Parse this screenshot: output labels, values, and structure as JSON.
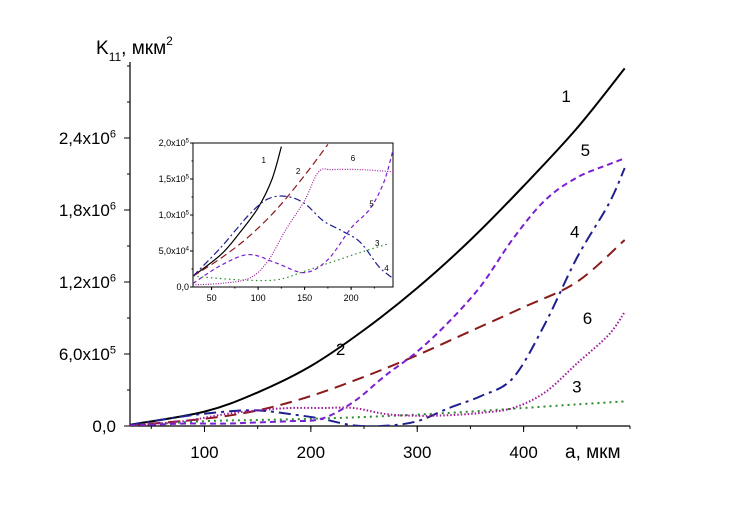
{
  "chart_data": [
    {
      "type": "line",
      "ylabel": "K",
      "ylabel_sub": "11",
      "ylabel_unit": ", мкм",
      "ylabel_sup": "2",
      "xlabel": "a, мкм",
      "xlim": [
        30,
        500
      ],
      "ylim": [
        0,
        3000000
      ],
      "x_ticks": [
        100,
        200,
        300,
        400
      ],
      "x_tick_labels": [
        "100",
        "200",
        "300",
        "400"
      ],
      "y_ticks": [
        0,
        600000,
        1200000,
        1800000,
        2400000
      ],
      "y_tick_labels": [
        {
          "base": "0,0",
          "exp": ""
        },
        {
          "base": "6,0x10",
          "exp": "5"
        },
        {
          "base": "1,2x10",
          "exp": "6"
        },
        {
          "base": "1,8x10",
          "exp": "6"
        },
        {
          "base": "2,4x10",
          "exp": "6"
        }
      ],
      "grid": false,
      "series": [
        {
          "name": "1",
          "color": "#000000",
          "dash": "solid",
          "x": [
            30,
            100,
            150,
            200,
            250,
            300,
            350,
            400,
            450,
            495
          ],
          "y": [
            10000,
            120000,
            280000,
            500000,
            800000,
            1150000,
            1550000,
            2000000,
            2480000,
            2980000
          ],
          "label_at": [
            440,
            2700000
          ]
        },
        {
          "name": "2",
          "color": "#8b1a1a",
          "dash": "long",
          "x": [
            30,
            100,
            150,
            200,
            250,
            300,
            350,
            400,
            450,
            495
          ],
          "y": [
            5000,
            60000,
            130000,
            250000,
            410000,
            590000,
            790000,
            990000,
            1200000,
            1550000
          ],
          "label_at": [
            228,
            590000
          ]
        },
        {
          "name": "3",
          "color": "#2e8b2e",
          "dash": "dot",
          "x": [
            30,
            100,
            150,
            200,
            250,
            300,
            350,
            400,
            450,
            495
          ],
          "y": [
            3000,
            40000,
            50000,
            60000,
            75000,
            95000,
            120000,
            150000,
            180000,
            205000
          ],
          "label_at": [
            450,
            280000
          ]
        },
        {
          "name": "4",
          "color": "#1f1f8f",
          "dash": "dashdot",
          "x": [
            30,
            80,
            120,
            150,
            180,
            210,
            240,
            270,
            300,
            330,
            360,
            390,
            420,
            450,
            480,
            495
          ],
          "y": [
            8000,
            80000,
            120000,
            130000,
            100000,
            60000,
            5000,
            2000,
            40000,
            150000,
            250000,
            400000,
            850000,
            1400000,
            1850000,
            2150000
          ],
          "label_at": [
            448,
            1570000
          ]
        },
        {
          "name": "5",
          "color": "#7a1fd1",
          "dash": "short",
          "x": [
            30,
            80,
            120,
            150,
            180,
            210,
            240,
            270,
            300,
            330,
            360,
            390,
            420,
            450,
            480,
            495
          ],
          "y": [
            3000,
            20000,
            20000,
            30000,
            40000,
            60000,
            200000,
            420000,
            620000,
            870000,
            1170000,
            1560000,
            1880000,
            2070000,
            2180000,
            2230000
          ],
          "label_at": [
            458,
            2250000
          ]
        },
        {
          "name": "6",
          "color": "#a0189a",
          "dash": "fine",
          "x": [
            30,
            80,
            120,
            150,
            180,
            210,
            240,
            270,
            300,
            330,
            360,
            390,
            420,
            450,
            480,
            495
          ],
          "y": [
            3000,
            40000,
            100000,
            130000,
            150000,
            150000,
            150000,
            100000,
            85000,
            90000,
            110000,
            150000,
            280000,
            520000,
            760000,
            950000
          ],
          "label_at": [
            460,
            850000
          ]
        }
      ]
    },
    {
      "type": "line",
      "ylabel": "",
      "xlabel": "",
      "xlim": [
        30,
        245
      ],
      "ylim": [
        0,
        200000
      ],
      "x_ticks": [
        50,
        100,
        150,
        200
      ],
      "x_tick_labels": [
        "50",
        "100",
        "150",
        "200"
      ],
      "y_ticks": [
        0,
        50000,
        100000,
        150000,
        200000
      ],
      "y_tick_labels": [
        {
          "base": "0,0",
          "exp": ""
        },
        {
          "base": "5,0x10",
          "exp": "4"
        },
        {
          "base": "1,0x10",
          "exp": "5"
        },
        {
          "base": "1,5x10",
          "exp": "5"
        },
        {
          "base": "2,0x10",
          "exp": "5"
        }
      ],
      "grid": false,
      "series": [
        {
          "name": "1",
          "color": "#000000",
          "dash": "solid",
          "x": [
            30,
            60,
            80,
            100,
            115,
            125
          ],
          "y": [
            15000,
            45000,
            75000,
            110000,
            150000,
            195000
          ],
          "label_at": [
            106,
            172000
          ]
        },
        {
          "name": "2",
          "color": "#8b1a1a",
          "dash": "long",
          "x": [
            30,
            60,
            90,
            120,
            150,
            175
          ],
          "y": [
            15000,
            40000,
            70000,
            108000,
            155000,
            198000
          ],
          "label_at": [
            143,
            157000
          ]
        },
        {
          "name": "3",
          "color": "#2e8b2e",
          "dash": "dot",
          "x": [
            30,
            80,
            120,
            150,
            180,
            210,
            240
          ],
          "y": [
            15000,
            10000,
            10000,
            22000,
            35000,
            48000,
            60000
          ],
          "label_at": [
            228,
            57000
          ]
        },
        {
          "name": "4",
          "color": "#1f1f8f",
          "dash": "dashdot",
          "x": [
            30,
            60,
            90,
            110,
            130,
            150,
            170,
            190,
            210,
            230,
            245
          ],
          "y": [
            15000,
            55000,
            100000,
            122000,
            126000,
            116000,
            92000,
            78000,
            62000,
            28000,
            12000
          ],
          "label_at": [
            238,
            22000
          ]
        },
        {
          "name": "5",
          "color": "#7a1fd1",
          "dash": "short",
          "x": [
            30,
            60,
            90,
            120,
            150,
            175,
            200,
            220,
            235,
            245
          ],
          "y": [
            5000,
            30000,
            45000,
            33000,
            20000,
            38000,
            82000,
            108000,
            145000,
            190000
          ],
          "label_at": [
            222,
            112000
          ]
        },
        {
          "name": "6",
          "color": "#a0189a",
          "dash": "fine",
          "x": [
            30,
            60,
            90,
            110,
            130,
            150,
            165,
            180,
            210,
            245
          ],
          "y": [
            3000,
            5000,
            12000,
            35000,
            80000,
            120000,
            160000,
            163000,
            163000,
            160000
          ],
          "label_at": [
            202,
            175000
          ]
        }
      ]
    }
  ]
}
